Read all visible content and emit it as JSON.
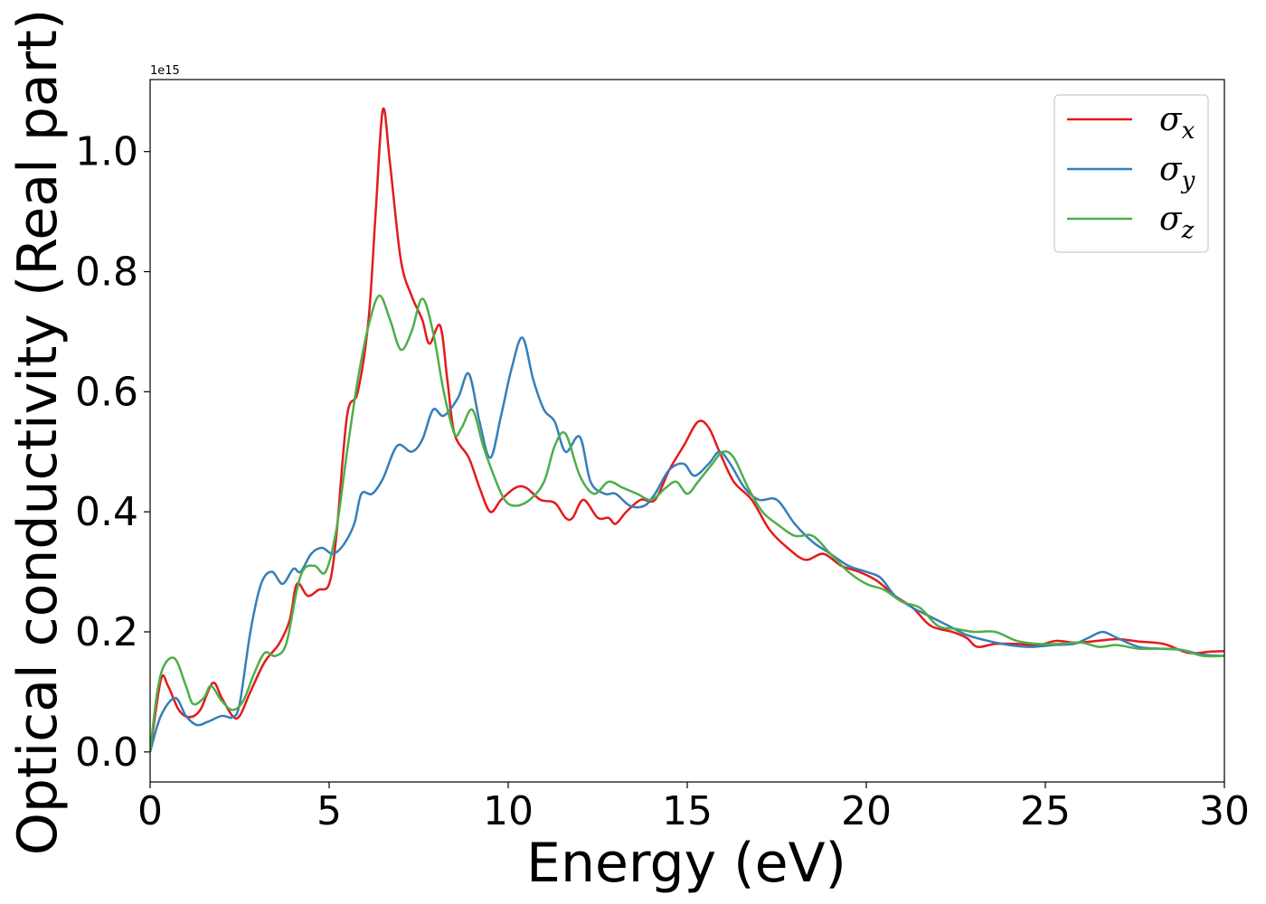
{
  "chart_data": {
    "type": "line",
    "xlabel": "Energy (eV)",
    "ylabel": "Optical conductivity (Real part)",
    "y_scale_label": "1e15",
    "y_multiplier": 1000000000000000.0,
    "xlim": [
      0,
      30
    ],
    "ylim": [
      -0.05,
      1.12
    ],
    "xticks": [
      0,
      5,
      10,
      15,
      20,
      25,
      30
    ],
    "xtick_labels": [
      "0",
      "5",
      "10",
      "15",
      "20",
      "25",
      "30"
    ],
    "yticks": [
      0.0,
      0.2,
      0.4,
      0.6,
      0.8,
      1.0
    ],
    "ytick_labels": [
      "0.0",
      "0.2",
      "0.4",
      "0.6",
      "0.8",
      "1.0"
    ],
    "grid": false,
    "legend_position": "top-right",
    "series": [
      {
        "name": "σx",
        "label_base": "σ",
        "label_sub": "x",
        "color": "#e41a1c",
        "points": [
          [
            0,
            0.0
          ],
          [
            0.3,
            0.12
          ],
          [
            0.5,
            0.11
          ],
          [
            0.8,
            0.07
          ],
          [
            1.1,
            0.058
          ],
          [
            1.4,
            0.07
          ],
          [
            1.75,
            0.115
          ],
          [
            2.0,
            0.09
          ],
          [
            2.3,
            0.06
          ],
          [
            2.5,
            0.06
          ],
          [
            2.8,
            0.1
          ],
          [
            3.2,
            0.15
          ],
          [
            3.6,
            0.18
          ],
          [
            3.9,
            0.22
          ],
          [
            4.1,
            0.28
          ],
          [
            4.4,
            0.26
          ],
          [
            4.7,
            0.27
          ],
          [
            5.0,
            0.28
          ],
          [
            5.2,
            0.36
          ],
          [
            5.5,
            0.56
          ],
          [
            5.8,
            0.6
          ],
          [
            6.1,
            0.72
          ],
          [
            6.3,
            0.9
          ],
          [
            6.5,
            1.07
          ],
          [
            6.7,
            0.98
          ],
          [
            7.0,
            0.82
          ],
          [
            7.3,
            0.76
          ],
          [
            7.6,
            0.72
          ],
          [
            7.8,
            0.68
          ],
          [
            8.1,
            0.71
          ],
          [
            8.3,
            0.62
          ],
          [
            8.5,
            0.53
          ],
          [
            8.9,
            0.49
          ],
          [
            9.2,
            0.44
          ],
          [
            9.5,
            0.4
          ],
          [
            9.8,
            0.42
          ],
          [
            10.2,
            0.44
          ],
          [
            10.5,
            0.44
          ],
          [
            10.9,
            0.42
          ],
          [
            11.3,
            0.415
          ],
          [
            11.6,
            0.39
          ],
          [
            11.8,
            0.39
          ],
          [
            12.1,
            0.42
          ],
          [
            12.5,
            0.39
          ],
          [
            12.8,
            0.39
          ],
          [
            13.0,
            0.38
          ],
          [
            13.3,
            0.4
          ],
          [
            13.7,
            0.42
          ],
          [
            14.1,
            0.42
          ],
          [
            14.5,
            0.47
          ],
          [
            14.9,
            0.51
          ],
          [
            15.3,
            0.55
          ],
          [
            15.6,
            0.54
          ],
          [
            15.9,
            0.5
          ],
          [
            16.3,
            0.45
          ],
          [
            16.8,
            0.42
          ],
          [
            17.3,
            0.37
          ],
          [
            17.8,
            0.34
          ],
          [
            18.3,
            0.32
          ],
          [
            18.8,
            0.33
          ],
          [
            19.3,
            0.31
          ],
          [
            19.8,
            0.3
          ],
          [
            20.3,
            0.285
          ],
          [
            20.8,
            0.26
          ],
          [
            21.3,
            0.24
          ],
          [
            21.8,
            0.21
          ],
          [
            22.4,
            0.2
          ],
          [
            22.8,
            0.19
          ],
          [
            23.1,
            0.175
          ],
          [
            23.6,
            0.18
          ],
          [
            24.2,
            0.18
          ],
          [
            24.8,
            0.178
          ],
          [
            25.3,
            0.185
          ],
          [
            25.8,
            0.182
          ],
          [
            26.3,
            0.184
          ],
          [
            27.0,
            0.188
          ],
          [
            27.6,
            0.184
          ],
          [
            28.3,
            0.18
          ],
          [
            29.0,
            0.165
          ],
          [
            29.6,
            0.167
          ],
          [
            30.0,
            0.168
          ]
        ]
      },
      {
        "name": "σy",
        "label_base": "σ",
        "label_sub": "y",
        "color": "#377eb8",
        "points": [
          [
            0,
            0.0
          ],
          [
            0.3,
            0.06
          ],
          [
            0.7,
            0.09
          ],
          [
            1.0,
            0.06
          ],
          [
            1.3,
            0.045
          ],
          [
            1.6,
            0.05
          ],
          [
            2.0,
            0.06
          ],
          [
            2.3,
            0.058
          ],
          [
            2.5,
            0.08
          ],
          [
            2.8,
            0.2
          ],
          [
            3.1,
            0.28
          ],
          [
            3.4,
            0.3
          ],
          [
            3.7,
            0.28
          ],
          [
            4.0,
            0.305
          ],
          [
            4.2,
            0.3
          ],
          [
            4.5,
            0.33
          ],
          [
            4.8,
            0.34
          ],
          [
            5.1,
            0.33
          ],
          [
            5.4,
            0.345
          ],
          [
            5.7,
            0.38
          ],
          [
            5.9,
            0.43
          ],
          [
            6.2,
            0.43
          ],
          [
            6.5,
            0.455
          ],
          [
            6.9,
            0.51
          ],
          [
            7.3,
            0.5
          ],
          [
            7.6,
            0.52
          ],
          [
            7.9,
            0.57
          ],
          [
            8.2,
            0.56
          ],
          [
            8.6,
            0.59
          ],
          [
            8.9,
            0.63
          ],
          [
            9.2,
            0.55
          ],
          [
            9.5,
            0.49
          ],
          [
            9.8,
            0.56
          ],
          [
            10.1,
            0.64
          ],
          [
            10.4,
            0.69
          ],
          [
            10.7,
            0.62
          ],
          [
            11.0,
            0.57
          ],
          [
            11.3,
            0.55
          ],
          [
            11.6,
            0.5
          ],
          [
            12.0,
            0.525
          ],
          [
            12.3,
            0.45
          ],
          [
            12.7,
            0.43
          ],
          [
            13.0,
            0.43
          ],
          [
            13.4,
            0.41
          ],
          [
            13.8,
            0.41
          ],
          [
            14.1,
            0.43
          ],
          [
            14.5,
            0.47
          ],
          [
            14.9,
            0.48
          ],
          [
            15.2,
            0.46
          ],
          [
            15.6,
            0.48
          ],
          [
            15.9,
            0.5
          ],
          [
            16.2,
            0.48
          ],
          [
            16.6,
            0.44
          ],
          [
            17.0,
            0.42
          ],
          [
            17.5,
            0.42
          ],
          [
            18.0,
            0.38
          ],
          [
            18.5,
            0.35
          ],
          [
            19.0,
            0.33
          ],
          [
            19.5,
            0.31
          ],
          [
            20.0,
            0.3
          ],
          [
            20.4,
            0.29
          ],
          [
            20.8,
            0.26
          ],
          [
            21.3,
            0.24
          ],
          [
            21.8,
            0.225
          ],
          [
            22.3,
            0.21
          ],
          [
            22.8,
            0.195
          ],
          [
            23.4,
            0.185
          ],
          [
            24.0,
            0.178
          ],
          [
            24.6,
            0.175
          ],
          [
            25.2,
            0.178
          ],
          [
            25.8,
            0.18
          ],
          [
            26.2,
            0.19
          ],
          [
            26.6,
            0.2
          ],
          [
            27.0,
            0.19
          ],
          [
            27.6,
            0.175
          ],
          [
            28.2,
            0.172
          ],
          [
            28.8,
            0.17
          ],
          [
            29.4,
            0.162
          ],
          [
            30.0,
            0.16
          ]
        ]
      },
      {
        "name": "σz",
        "label_base": "σ",
        "label_sub": "z",
        "color": "#4daf4a",
        "points": [
          [
            0,
            0.0
          ],
          [
            0.2,
            0.1
          ],
          [
            0.4,
            0.145
          ],
          [
            0.7,
            0.155
          ],
          [
            1.0,
            0.11
          ],
          [
            1.2,
            0.08
          ],
          [
            1.5,
            0.09
          ],
          [
            1.7,
            0.11
          ],
          [
            2.0,
            0.085
          ],
          [
            2.3,
            0.07
          ],
          [
            2.6,
            0.085
          ],
          [
            2.9,
            0.13
          ],
          [
            3.2,
            0.165
          ],
          [
            3.5,
            0.16
          ],
          [
            3.8,
            0.18
          ],
          [
            4.1,
            0.27
          ],
          [
            4.3,
            0.305
          ],
          [
            4.6,
            0.31
          ],
          [
            4.9,
            0.3
          ],
          [
            5.2,
            0.37
          ],
          [
            5.5,
            0.5
          ],
          [
            5.8,
            0.62
          ],
          [
            6.1,
            0.71
          ],
          [
            6.4,
            0.76
          ],
          [
            6.7,
            0.72
          ],
          [
            7.0,
            0.67
          ],
          [
            7.3,
            0.7
          ],
          [
            7.6,
            0.755
          ],
          [
            7.9,
            0.7
          ],
          [
            8.2,
            0.6
          ],
          [
            8.5,
            0.53
          ],
          [
            8.7,
            0.54
          ],
          [
            9.0,
            0.57
          ],
          [
            9.3,
            0.51
          ],
          [
            9.6,
            0.46
          ],
          [
            9.9,
            0.42
          ],
          [
            10.2,
            0.41
          ],
          [
            10.6,
            0.42
          ],
          [
            11.0,
            0.45
          ],
          [
            11.3,
            0.51
          ],
          [
            11.6,
            0.53
          ],
          [
            12.0,
            0.46
          ],
          [
            12.4,
            0.43
          ],
          [
            12.8,
            0.45
          ],
          [
            13.2,
            0.44
          ],
          [
            13.6,
            0.43
          ],
          [
            14.0,
            0.42
          ],
          [
            14.4,
            0.44
          ],
          [
            14.7,
            0.45
          ],
          [
            15.0,
            0.43
          ],
          [
            15.3,
            0.45
          ],
          [
            15.7,
            0.48
          ],
          [
            16.0,
            0.5
          ],
          [
            16.3,
            0.49
          ],
          [
            16.7,
            0.44
          ],
          [
            17.1,
            0.4
          ],
          [
            17.5,
            0.38
          ],
          [
            18.0,
            0.36
          ],
          [
            18.5,
            0.36
          ],
          [
            19.0,
            0.33
          ],
          [
            19.5,
            0.3
          ],
          [
            20.0,
            0.28
          ],
          [
            20.5,
            0.27
          ],
          [
            21.0,
            0.25
          ],
          [
            21.5,
            0.24
          ],
          [
            22.0,
            0.21
          ],
          [
            22.5,
            0.205
          ],
          [
            23.0,
            0.2
          ],
          [
            23.6,
            0.2
          ],
          [
            24.2,
            0.185
          ],
          [
            24.8,
            0.18
          ],
          [
            25.4,
            0.18
          ],
          [
            26.0,
            0.182
          ],
          [
            26.5,
            0.175
          ],
          [
            27.0,
            0.178
          ],
          [
            27.6,
            0.172
          ],
          [
            28.2,
            0.172
          ],
          [
            28.8,
            0.17
          ],
          [
            29.4,
            0.16
          ],
          [
            30.0,
            0.16
          ]
        ]
      }
    ]
  }
}
